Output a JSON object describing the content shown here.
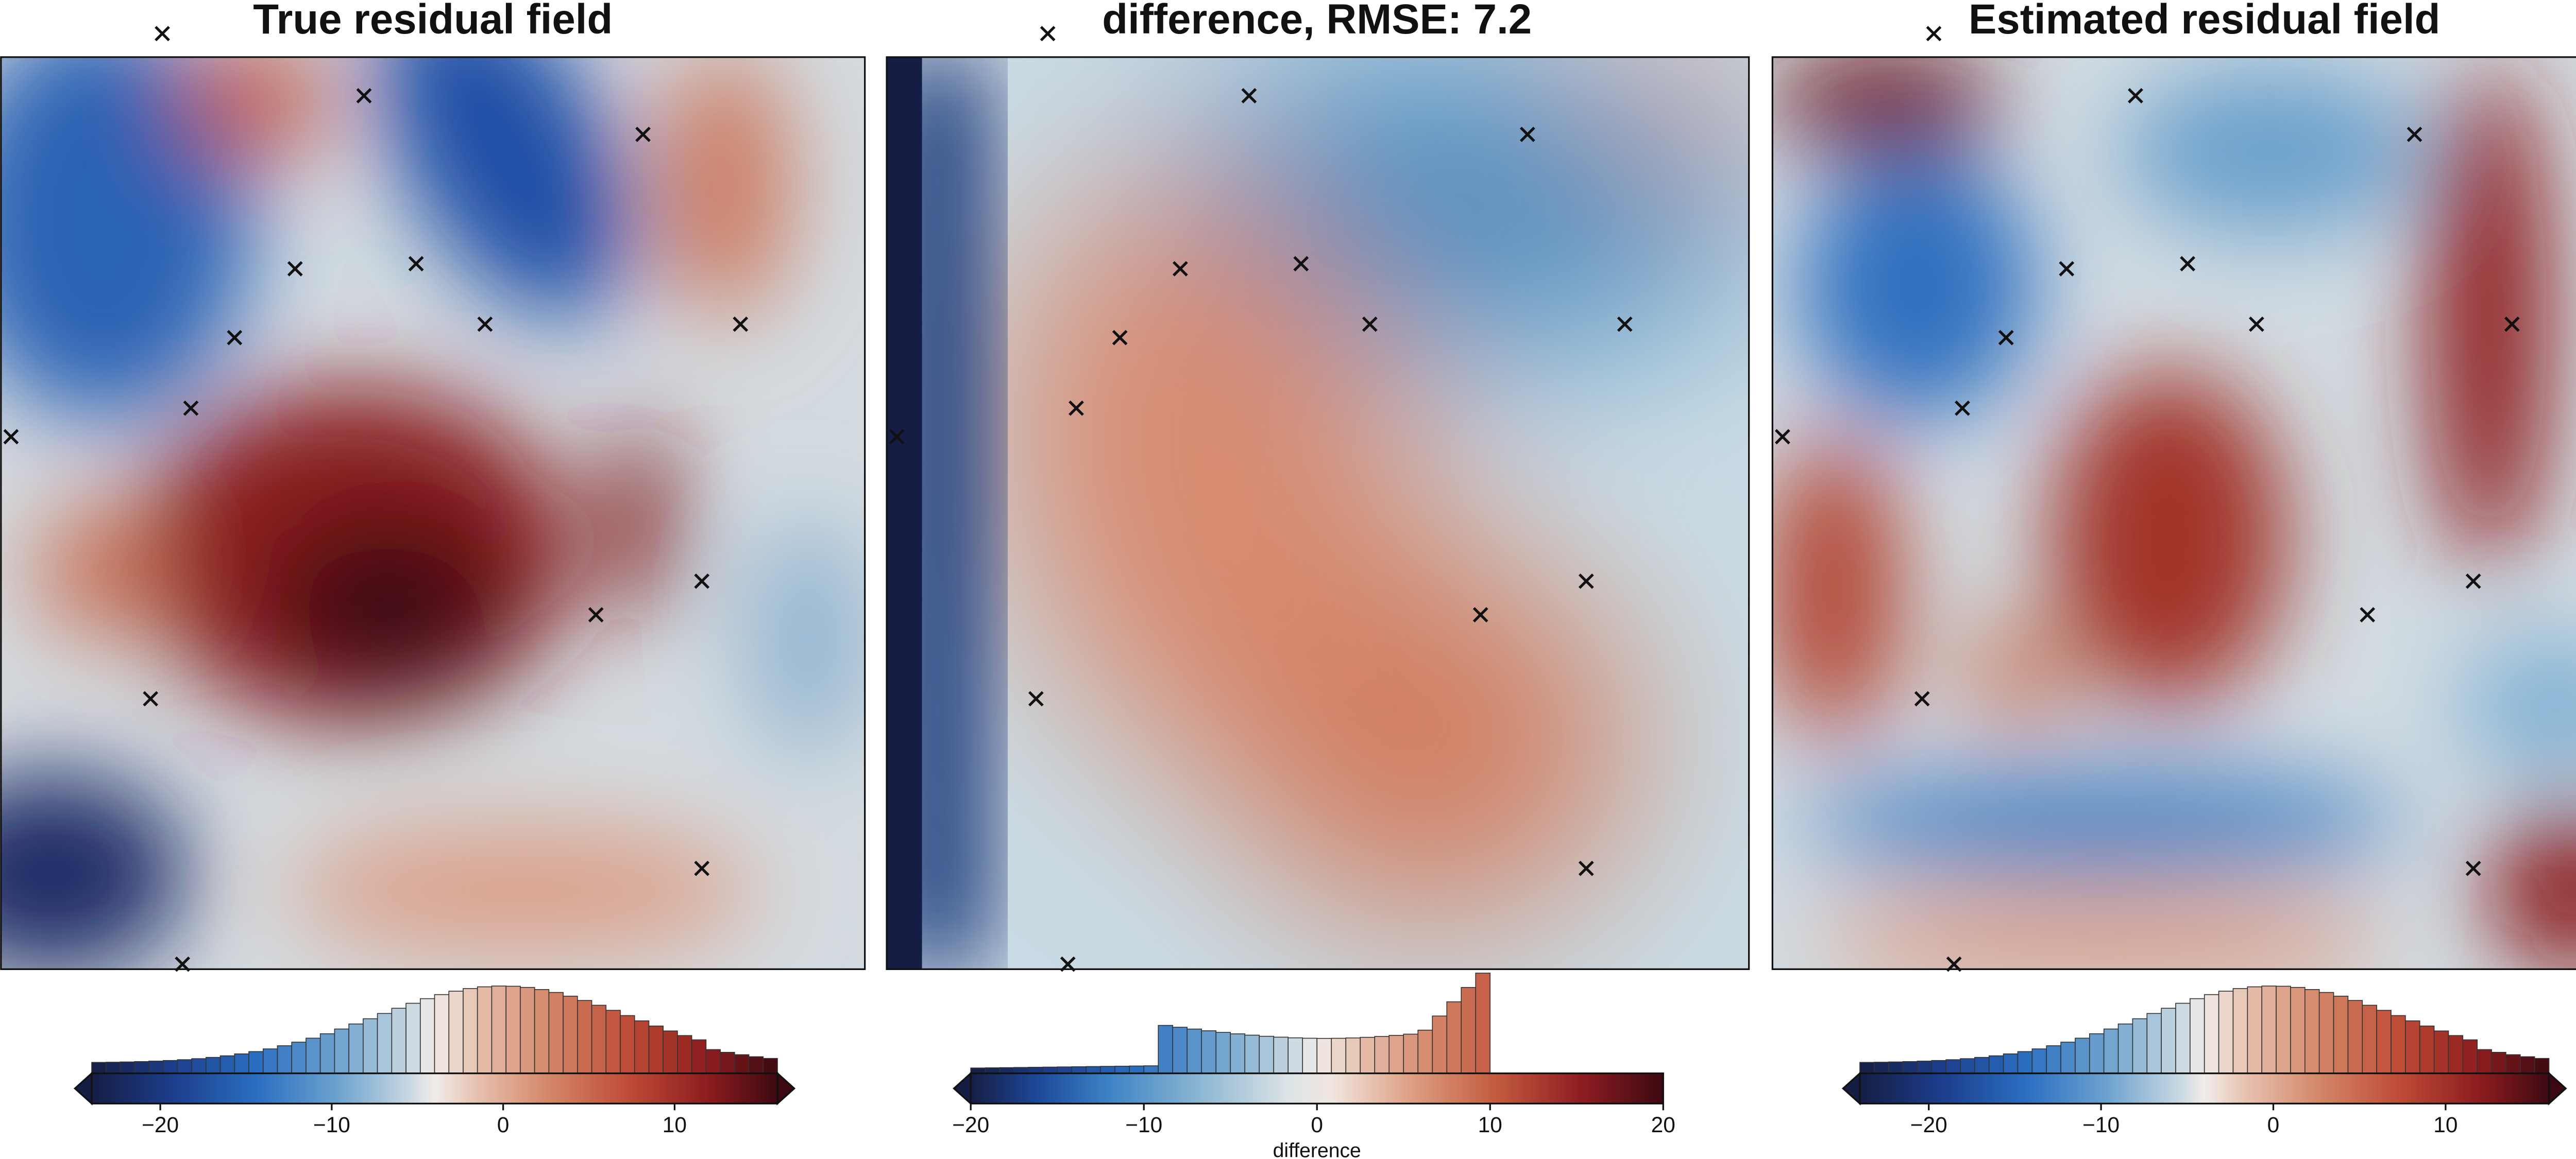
{
  "chart_data": [
    {
      "type": "heatmap",
      "title": "True residual field",
      "colorscale": "diverging blue-white-red (vik-like)",
      "colorbar": {
        "range": [
          -24,
          16
        ],
        "ticks": [
          -20,
          -10,
          0,
          10
        ],
        "tick_labels": [
          "−20",
          "−10",
          "0",
          "10"
        ],
        "extend": "both",
        "histogram": true,
        "label": ""
      },
      "markers": {
        "symbol": "x",
        "points": [
          [
            96,
            20
          ],
          [
            216,
            57
          ],
          [
            382,
            80
          ],
          [
            175,
            160
          ],
          [
            247,
            157
          ],
          [
            288,
            193
          ],
          [
            440,
            193
          ],
          [
            139,
            201
          ],
          [
            113,
            243
          ],
          [
            6,
            260
          ],
          [
            417,
            346
          ],
          [
            354,
            366
          ],
          [
            89,
            416
          ],
          [
            417,
            517
          ],
          [
            108,
            574
          ]
        ]
      }
    },
    {
      "type": "heatmap",
      "title": "difference, RMSE: 7.2",
      "colorscale": "diverging blue-white-red (vik-like)",
      "colorbar": {
        "range": [
          -20,
          20
        ],
        "ticks": [
          -20,
          -10,
          0,
          10,
          20
        ],
        "tick_labels": [
          "−20",
          "−10",
          "0",
          "10",
          "20"
        ],
        "extend": "left",
        "histogram": true,
        "label": "difference"
      },
      "markers": {
        "symbol": "x",
        "points": [
          [
            96,
            20
          ],
          [
            216,
            57
          ],
          [
            382,
            80
          ],
          [
            175,
            160
          ],
          [
            247,
            157
          ],
          [
            288,
            193
          ],
          [
            440,
            193
          ],
          [
            139,
            201
          ],
          [
            113,
            243
          ],
          [
            6,
            260
          ],
          [
            417,
            346
          ],
          [
            354,
            366
          ],
          [
            89,
            416
          ],
          [
            417,
            517
          ],
          [
            108,
            574
          ]
        ]
      }
    },
    {
      "type": "heatmap",
      "title": "Estimated residual field",
      "colorscale": "diverging blue-white-red (vik-like)",
      "colorbar": {
        "range": [
          -24,
          16
        ],
        "ticks": [
          -20,
          -10,
          0,
          10
        ],
        "tick_labels": [
          "−20",
          "−10",
          "0",
          "10"
        ],
        "extend": "both",
        "histogram": true,
        "label": ""
      },
      "markers": {
        "symbol": "x",
        "points": [
          [
            96,
            20
          ],
          [
            216,
            57
          ],
          [
            382,
            80
          ],
          [
            175,
            160
          ],
          [
            247,
            157
          ],
          [
            288,
            193
          ],
          [
            440,
            193
          ],
          [
            139,
            201
          ],
          [
            113,
            243
          ],
          [
            6,
            260
          ],
          [
            417,
            346
          ],
          [
            354,
            366
          ],
          [
            89,
            416
          ],
          [
            417,
            517
          ],
          [
            108,
            574
          ]
        ]
      }
    }
  ]
}
